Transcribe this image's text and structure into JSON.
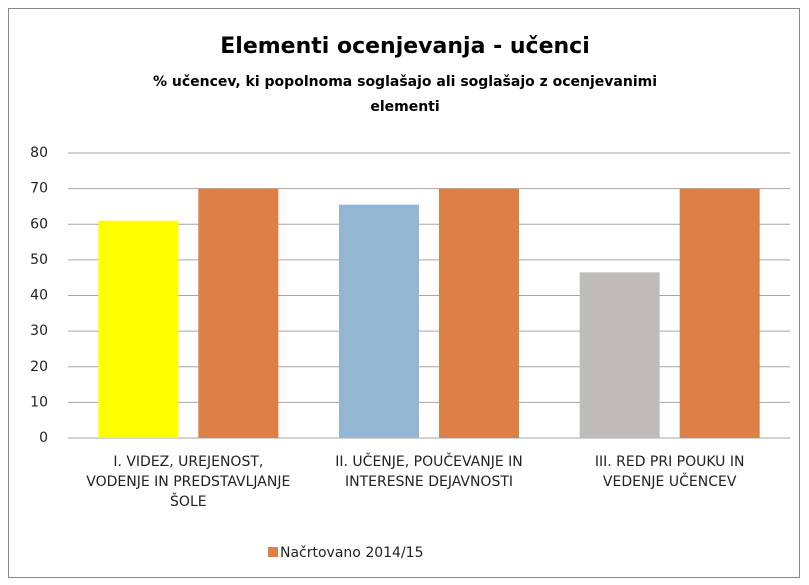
{
  "chart_data": {
    "type": "bar",
    "title": "Elementi ocenjevanja - učenci",
    "subtitle": "% učencev, ki popolnoma soglašajo ali soglašajo z ocenjevanimi elementi",
    "categories": [
      "I. VIDEZ, UREJENOST, VODENJE IN PREDSTAVLJANJE ŠOLE",
      "II. UČENJE, POUČEVANJE IN INTERESNE DEJAVNOSTI",
      "III. RED PRI POUKU IN VEDENJE UČENCEV"
    ],
    "series": [
      {
        "colors": [
          "#ffff00",
          "#94b6d2",
          "#bfbbbb"
        ],
        "values": [
          61,
          65.5,
          46.5
        ]
      },
      {
        "name": "Načrtovano 2014/15",
        "color": "#dd8047",
        "values": [
          70,
          70,
          70
        ]
      }
    ],
    "ylim": [
      0,
      80
    ],
    "yticks": [
      0,
      10,
      20,
      30,
      40,
      50,
      60,
      70,
      80
    ],
    "grid": true,
    "legend": "bottom"
  }
}
